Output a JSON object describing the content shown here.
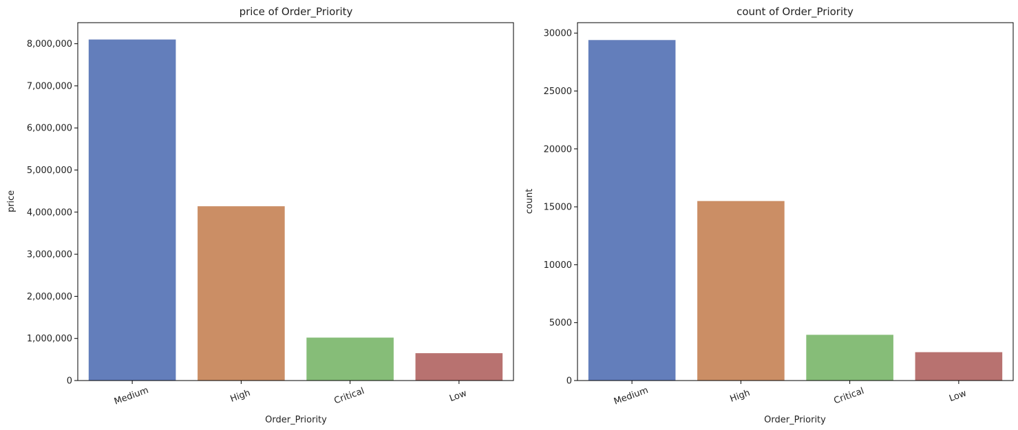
{
  "chart_data": [
    {
      "type": "bar",
      "title": "price of Order_Priority",
      "xlabel": "Order_Priority",
      "ylabel": "price",
      "categories": [
        "Medium",
        "High",
        "Critical",
        "Low"
      ],
      "values": [
        8100000,
        4140000,
        1020000,
        650000
      ],
      "colors": [
        "#637ebb",
        "#cb8e65",
        "#86bd78",
        "#b87270"
      ],
      "ylim": [
        0,
        8500000
      ],
      "yticks": [
        0,
        1000000,
        2000000,
        3000000,
        4000000,
        5000000,
        6000000,
        7000000,
        8000000
      ],
      "ytick_labels": [
        "0",
        "1,000,000",
        "2,000,000",
        "3,000,000",
        "4,000,000",
        "5,000,000",
        "6,000,000",
        "7,000,000",
        "8,000,000"
      ],
      "grid": false,
      "xtick_rotation_deg": 20
    },
    {
      "type": "bar",
      "title": "count of Order_Priority",
      "xlabel": "Order_Priority",
      "ylabel": "count",
      "categories": [
        "Medium",
        "High",
        "Critical",
        "Low"
      ],
      "values": [
        29400,
        15500,
        3950,
        2450
      ],
      "colors": [
        "#637ebb",
        "#cb8e65",
        "#86bd78",
        "#b87270"
      ],
      "ylim": [
        0,
        30900
      ],
      "yticks": [
        0,
        5000,
        10000,
        15000,
        20000,
        25000,
        30000
      ],
      "ytick_labels": [
        "0",
        "5000",
        "10000",
        "15000",
        "20000",
        "25000",
        "30000"
      ],
      "grid": false,
      "xtick_rotation_deg": 20
    }
  ]
}
